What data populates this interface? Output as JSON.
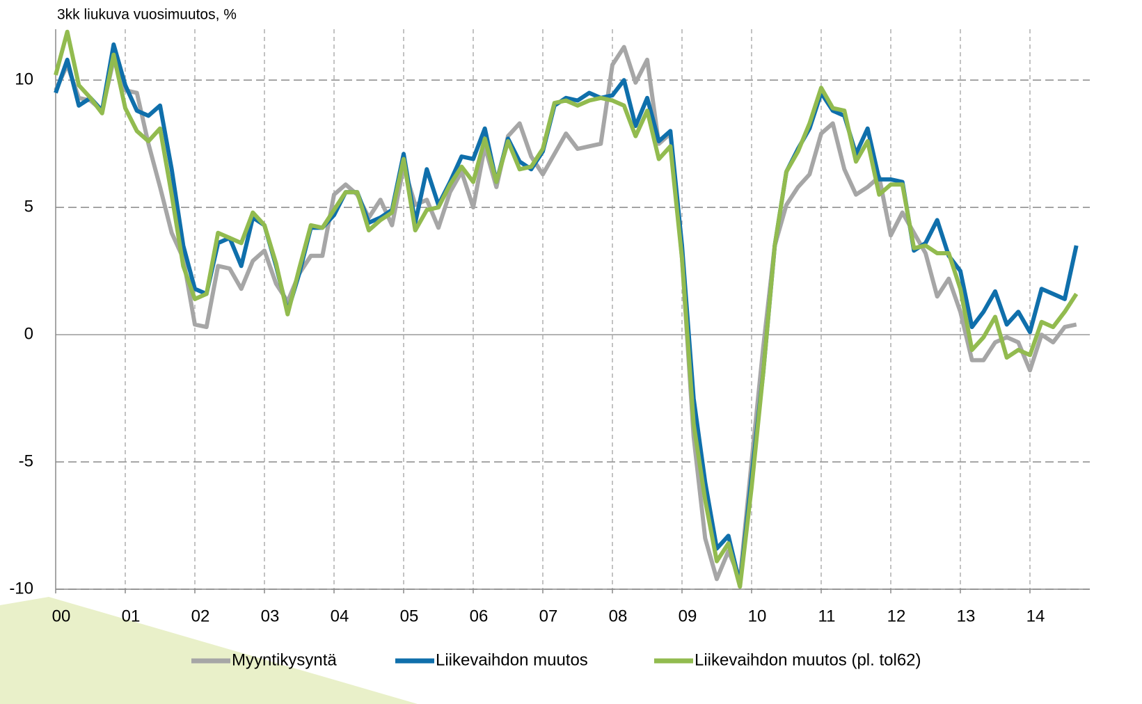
{
  "chart_data": {
    "type": "line",
    "y_axis_label": "3kk liukuva vuosimuutos, %",
    "categories": [
      "00",
      null,
      null,
      null,
      null,
      null,
      "01",
      null,
      null,
      null,
      null,
      null,
      "02",
      null,
      null,
      null,
      null,
      null,
      "03",
      null,
      null,
      null,
      null,
      null,
      "04",
      null,
      null,
      null,
      null,
      null,
      "05",
      null,
      null,
      null,
      null,
      null,
      "06",
      null,
      null,
      null,
      null,
      null,
      "07",
      null,
      null,
      null,
      null,
      null,
      "08",
      null,
      null,
      null,
      null,
      null,
      "09",
      null,
      null,
      null,
      null,
      null,
      "10",
      null,
      null,
      null,
      null,
      null,
      "11",
      null,
      null,
      null,
      null,
      null,
      "12",
      null,
      null,
      null,
      null,
      null,
      "13",
      null,
      null,
      null,
      null,
      null,
      "14",
      null,
      null,
      null,
      null
    ],
    "series": [
      {
        "name": "Myyntikysyntä",
        "color": "#a6a6a6",
        "values": [
          9.6,
          10.6,
          9.3,
          9.2,
          8.8,
          10.8,
          9.6,
          9.5,
          7.5,
          5.8,
          4.0,
          3.0,
          0.4,
          0.3,
          2.7,
          2.6,
          1.8,
          2.9,
          3.3,
          2.0,
          1.3,
          2.4,
          3.1,
          3.1,
          5.5,
          5.9,
          5.5,
          4.6,
          5.3,
          4.3,
          6.6,
          5.1,
          5.3,
          4.2,
          5.6,
          6.4,
          5.0,
          7.4,
          5.8,
          7.8,
          8.3,
          7.0,
          6.3,
          7.1,
          7.9,
          7.3,
          7.4,
          7.5,
          10.6,
          11.3,
          9.9,
          10.8,
          7.5,
          7.9,
          3.0,
          -4.0,
          -8.0,
          -9.6,
          -8.5,
          -9.6,
          -5.0,
          -0.5,
          3.5,
          5.1,
          5.8,
          6.3,
          7.9,
          8.3,
          6.5,
          5.5,
          5.8,
          6.2,
          3.9,
          4.8,
          4.0,
          3.2,
          1.5,
          2.2,
          0.9,
          -1.0,
          -1.0,
          -0.3,
          -0.1,
          -0.3,
          -1.4,
          0.0,
          -0.3,
          0.3,
          0.4
        ]
      },
      {
        "name": "Liikevaihdon muutos",
        "color": "#0f6fab",
        "values": [
          9.5,
          10.8,
          9.0,
          9.3,
          8.8,
          11.4,
          9.8,
          8.8,
          8.6,
          9.0,
          6.5,
          3.5,
          1.8,
          1.6,
          3.6,
          3.8,
          2.7,
          4.6,
          4.3,
          2.7,
          0.9,
          2.4,
          4.2,
          4.2,
          4.7,
          5.6,
          5.6,
          4.4,
          4.6,
          4.9,
          7.1,
          4.4,
          6.5,
          5.1,
          6.0,
          7.0,
          6.9,
          8.1,
          6.0,
          7.7,
          6.8,
          6.5,
          7.2,
          9.0,
          9.3,
          9.2,
          9.5,
          9.3,
          9.4,
          10.0,
          8.2,
          9.3,
          7.6,
          8.0,
          3.5,
          -2.5,
          -5.8,
          -8.4,
          -7.9,
          -9.8,
          -5.6,
          -1.5,
          3.5,
          6.4,
          7.3,
          8.1,
          9.5,
          8.8,
          8.6,
          7.1,
          8.1,
          6.1,
          6.1,
          6.0,
          3.3,
          3.6,
          4.5,
          3.1,
          2.5,
          0.3,
          0.9,
          1.7,
          0.4,
          0.9,
          0.1,
          1.8,
          1.6,
          1.4,
          3.5
        ]
      },
      {
        "name": "Liikevaihdon muutos (pl. tol62)",
        "color": "#92bb4f",
        "values": [
          10.2,
          11.9,
          9.8,
          9.3,
          8.7,
          11.0,
          8.9,
          8.0,
          7.6,
          8.1,
          5.5,
          2.7,
          1.4,
          1.6,
          4.0,
          3.8,
          3.6,
          4.8,
          4.3,
          2.8,
          0.8,
          2.6,
          4.3,
          4.2,
          4.9,
          5.6,
          5.6,
          4.1,
          4.5,
          4.8,
          6.9,
          4.1,
          4.9,
          5.0,
          5.9,
          6.6,
          6.0,
          7.7,
          6.0,
          7.6,
          6.5,
          6.6,
          7.3,
          9.1,
          9.2,
          9.0,
          9.2,
          9.3,
          9.2,
          9.0,
          7.8,
          8.8,
          6.9,
          7.4,
          3.0,
          -3.5,
          -6.5,
          -8.9,
          -8.2,
          -9.9,
          -6.0,
          -1.5,
          3.5,
          6.4,
          7.2,
          8.3,
          9.7,
          8.9,
          8.8,
          6.8,
          7.6,
          5.5,
          5.9,
          5.9,
          3.4,
          3.5,
          3.2,
          3.2,
          1.8,
          -0.6,
          -0.1,
          0.7,
          -0.9,
          -0.6,
          -0.8,
          0.5,
          0.3,
          0.9,
          1.6
        ]
      }
    ],
    "ylim": [
      -10,
      12
    ],
    "yticks": [
      -10,
      -5,
      0,
      5,
      10
    ],
    "grid": true,
    "legend": "bottom"
  }
}
